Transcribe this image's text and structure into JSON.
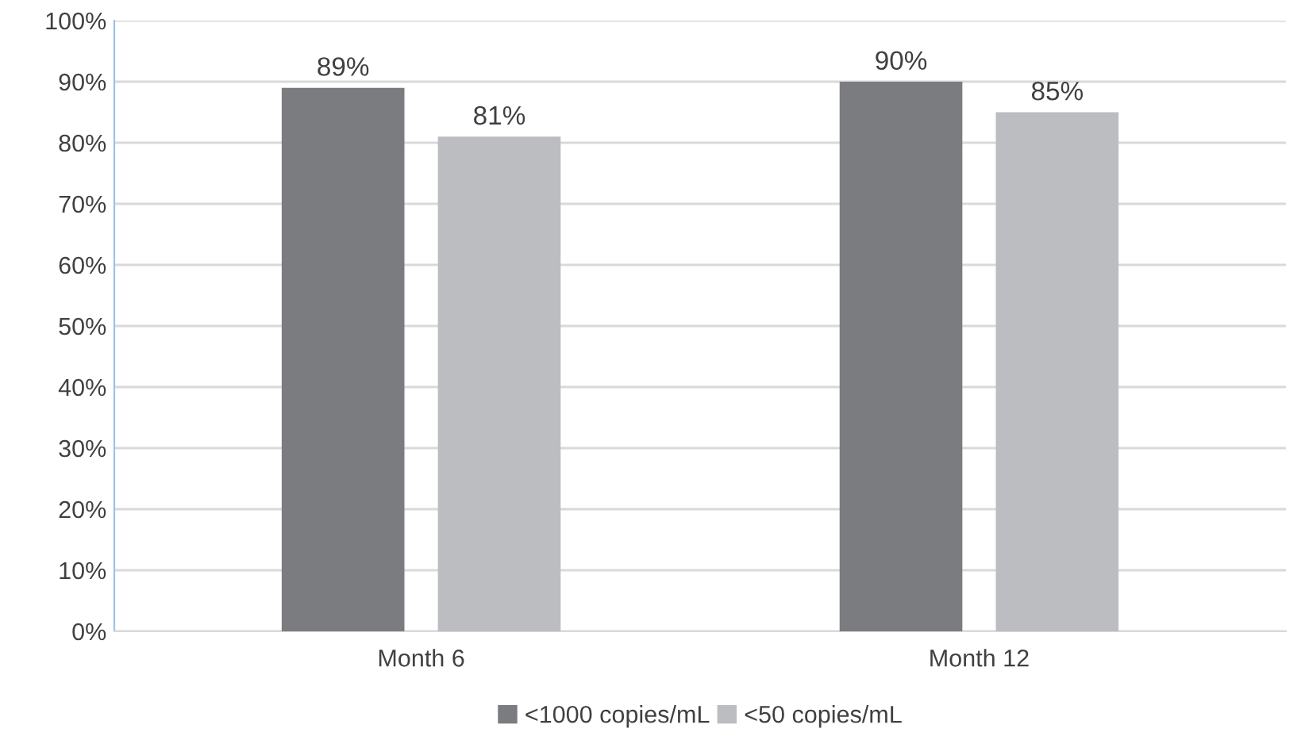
{
  "chart_data": {
    "type": "bar",
    "categories": [
      "Month 6",
      "Month 12"
    ],
    "series": [
      {
        "name": "<1000 copies/mL",
        "color": "#7b7c80",
        "values": [
          89,
          90
        ],
        "value_labels": [
          "89%",
          "90%"
        ]
      },
      {
        "name": "<50 copies/mL",
        "color": "#bcbdc1",
        "values": [
          81,
          85
        ],
        "value_labels": [
          "81%",
          "85%"
        ]
      }
    ],
    "ylim": [
      0,
      100
    ],
    "yticks": [
      {
        "value": 0,
        "label": "0%"
      },
      {
        "value": 10,
        "label": "10%"
      },
      {
        "value": 20,
        "label": "20%"
      },
      {
        "value": 30,
        "label": "30%"
      },
      {
        "value": 40,
        "label": "40%"
      },
      {
        "value": 50,
        "label": "50%"
      },
      {
        "value": 60,
        "label": "60%"
      },
      {
        "value": 70,
        "label": "70%"
      },
      {
        "value": 80,
        "label": "80%"
      },
      {
        "value": 90,
        "label": "90%"
      },
      {
        "value": 100,
        "label": "100%"
      }
    ],
    "grid": "y",
    "legend": "bottom"
  }
}
